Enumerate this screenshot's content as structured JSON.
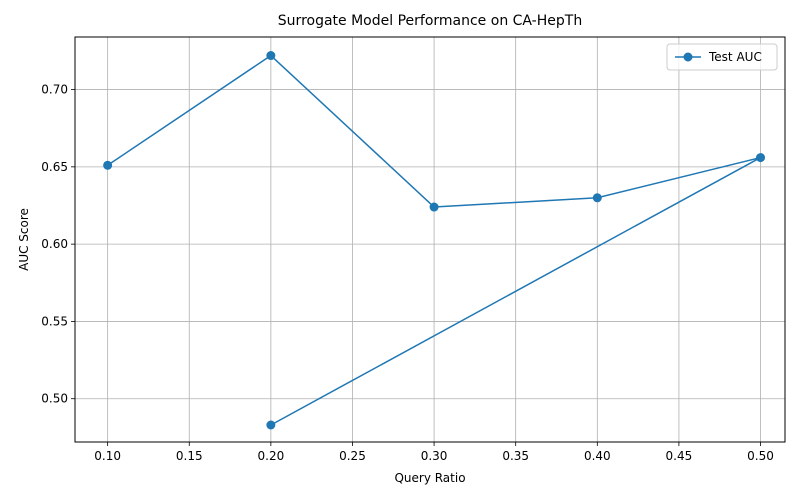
{
  "chart_data": {
    "type": "line",
    "title": "Surrogate Model Performance on CA-HepTh",
    "xlabel": "Query Ratio",
    "ylabel": "AUC Score",
    "xlim": [
      0.08,
      0.515
    ],
    "ylim": [
      0.472,
      0.734
    ],
    "xticks": [
      0.1,
      0.15,
      0.2,
      0.25,
      0.3,
      0.35,
      0.4,
      0.45,
      0.5
    ],
    "xtick_labels": [
      "0.10",
      "0.15",
      "0.20",
      "0.25",
      "0.30",
      "0.35",
      "0.40",
      "0.45",
      "0.50"
    ],
    "yticks": [
      0.5,
      0.55,
      0.6,
      0.65,
      0.7
    ],
    "ytick_labels": [
      "0.50",
      "0.55",
      "0.60",
      "0.65",
      "0.70"
    ],
    "grid": true,
    "legend_position": "top-right",
    "series": [
      {
        "name": "Test AUC",
        "color": "#1f77b4",
        "marker": "circle",
        "x": [
          0.1,
          0.2,
          0.3,
          0.4,
          0.5,
          0.2
        ],
        "y": [
          0.651,
          0.722,
          0.624,
          0.63,
          0.656,
          0.483
        ]
      }
    ]
  }
}
